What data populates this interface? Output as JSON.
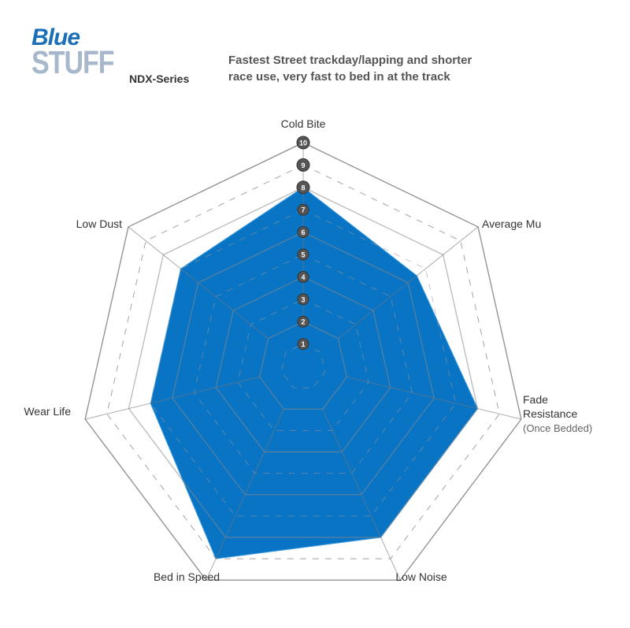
{
  "header": {
    "logo_text": "Blue Stuff",
    "series": "NDX-Series",
    "description_line1": "Fastest Street trackday/lapping and shorter",
    "description_line2": "race use, very fast to bed in at the track"
  },
  "chart_data": {
    "type": "radar",
    "axes": [
      "Cold Bite",
      "Average Mu",
      "Fade Resistance",
      "Low Noise",
      "Bed in Speed",
      "Wear Life",
      "Low Dust"
    ],
    "axis_note": {
      "Fade Resistance": "(Once Bedded)"
    },
    "values": [
      8,
      6.5,
      8,
      8,
      9,
      7,
      7
    ],
    "scale": [
      1,
      2,
      3,
      4,
      5,
      6,
      7,
      8,
      9,
      10
    ],
    "range": [
      0,
      10
    ],
    "fill_color": "#0a74c4",
    "grid_color": "#999999",
    "marker_color": "#555555"
  }
}
